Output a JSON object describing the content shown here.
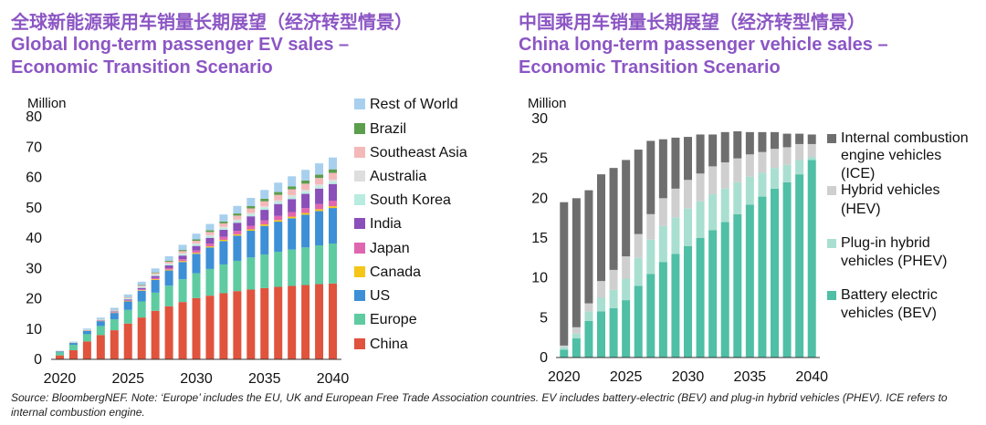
{
  "titles": {
    "left_zh": "全球新能源乘用车销量长期展望（经济转型情景）",
    "left_en_1": "Global long-term passenger EV sales –",
    "left_en_2": "Economic Transition Scenario",
    "right_zh": "中国乘用车销量长期展望（经济转型情景）",
    "right_en_1": "China long-term passenger vehicle sales –",
    "right_en_2": "Economic Transition Scenario"
  },
  "footnote": "Source: BloombergNEF. Note: ‘Europe’ includes the EU, UK and European Free Trade Association countries. EV includes battery-electric (BEV) and plug-in hybrid vehicles (PHEV). ICE refers to internal combustion engine.",
  "chart_data": [
    {
      "type": "bar",
      "stacked": true,
      "title": "Global long-term passenger EV sales – Economic Transition Scenario",
      "ylabel": "Million",
      "ylim": [
        0,
        80
      ],
      "yticks": [
        0,
        10,
        20,
        30,
        40,
        50,
        60,
        70,
        80
      ],
      "x": [
        2020,
        2021,
        2022,
        2023,
        2024,
        2025,
        2026,
        2027,
        2028,
        2029,
        2030,
        2031,
        2032,
        2033,
        2034,
        2035,
        2036,
        2037,
        2038,
        2039,
        2040
      ],
      "xticks": [
        2020,
        2025,
        2030,
        2035,
        2040
      ],
      "series": [
        {
          "name": "China",
          "color": "#e0533d",
          "values": [
            1.3,
            3.0,
            5.9,
            8.0,
            9.6,
            11.8,
            13.8,
            16.0,
            17.5,
            18.9,
            20.2,
            21.0,
            21.8,
            22.5,
            23.0,
            23.5,
            23.9,
            24.2,
            24.5,
            24.8,
            25.0
          ]
        },
        {
          "name": "Europe",
          "color": "#5ecba1",
          "values": [
            1.0,
            1.8,
            2.4,
            3.0,
            3.6,
            4.5,
            5.3,
            6.0,
            6.8,
            7.5,
            8.2,
            8.8,
            9.5,
            10.0,
            10.6,
            11.1,
            11.6,
            12.0,
            12.4,
            12.8,
            13.2
          ]
        },
        {
          "name": "US",
          "color": "#3d8fd6",
          "values": [
            0.3,
            0.6,
            1.1,
            1.6,
            2.1,
            2.8,
            3.5,
            4.2,
            5.0,
            5.7,
            6.4,
            7.1,
            7.7,
            8.3,
            8.8,
            9.4,
            9.9,
            10.3,
            10.8,
            11.3,
            11.7
          ]
        },
        {
          "name": "Canada",
          "color": "#f5c518",
          "values": [
            0.05,
            0.05,
            0.08,
            0.1,
            0.13,
            0.16,
            0.2,
            0.23,
            0.27,
            0.3,
            0.34,
            0.37,
            0.4,
            0.43,
            0.46,
            0.5,
            0.52,
            0.55,
            0.57,
            0.6,
            0.62
          ]
        },
        {
          "name": "Japan",
          "color": "#e066b0",
          "values": [
            0.03,
            0.04,
            0.06,
            0.1,
            0.15,
            0.22,
            0.3,
            0.4,
            0.5,
            0.62,
            0.75,
            0.9,
            1.0,
            1.1,
            1.2,
            1.3,
            1.4,
            1.5,
            1.6,
            1.7,
            1.8
          ]
        },
        {
          "name": "India",
          "color": "#8a4fb8",
          "values": [
            0.01,
            0.02,
            0.05,
            0.1,
            0.2,
            0.3,
            0.45,
            0.65,
            0.9,
            1.2,
            1.5,
            1.9,
            2.3,
            2.7,
            3.1,
            3.5,
            3.9,
            4.3,
            4.7,
            5.1,
            5.5
          ]
        },
        {
          "name": "South Korea",
          "color": "#b8ece0",
          "values": [
            0.05,
            0.08,
            0.12,
            0.17,
            0.22,
            0.28,
            0.33,
            0.38,
            0.43,
            0.47,
            0.5,
            0.53,
            0.56,
            0.59,
            0.62,
            0.64,
            0.66,
            0.68,
            0.7,
            0.72,
            0.74
          ]
        },
        {
          "name": "Australia",
          "color": "#dedede",
          "values": [
            0.01,
            0.02,
            0.03,
            0.05,
            0.08,
            0.12,
            0.16,
            0.2,
            0.25,
            0.3,
            0.35,
            0.4,
            0.44,
            0.48,
            0.52,
            0.56,
            0.6,
            0.63,
            0.66,
            0.69,
            0.72
          ]
        },
        {
          "name": "Southeast Asia",
          "color": "#f4b8b8",
          "values": [
            0.02,
            0.03,
            0.05,
            0.1,
            0.15,
            0.22,
            0.3,
            0.4,
            0.55,
            0.7,
            0.85,
            1.0,
            1.15,
            1.3,
            1.45,
            1.6,
            1.75,
            1.9,
            2.0,
            2.1,
            2.2
          ]
        },
        {
          "name": "Brazil",
          "color": "#5b9e4c",
          "values": [
            0.0,
            0.01,
            0.02,
            0.05,
            0.08,
            0.12,
            0.16,
            0.22,
            0.3,
            0.38,
            0.46,
            0.54,
            0.62,
            0.7,
            0.78,
            0.86,
            0.94,
            1.0,
            1.06,
            1.12,
            1.18
          ]
        },
        {
          "name": "Rest of World",
          "color": "#a8d0ee",
          "values": [
            0.1,
            0.2,
            0.35,
            0.5,
            0.7,
            0.9,
            1.1,
            1.3,
            1.5,
            1.7,
            1.9,
            2.1,
            2.3,
            2.5,
            2.7,
            2.9,
            3.1,
            3.3,
            3.5,
            3.7,
            3.9
          ]
        }
      ]
    },
    {
      "type": "bar",
      "stacked": true,
      "title": "China long-term passenger vehicle sales – Economic Transition Scenario",
      "ylabel": "Million",
      "ylim": [
        0,
        30
      ],
      "yticks": [
        0,
        5,
        10,
        15,
        20,
        25,
        30
      ],
      "x": [
        2020,
        2021,
        2022,
        2023,
        2024,
        2025,
        2026,
        2027,
        2028,
        2029,
        2030,
        2031,
        2032,
        2033,
        2034,
        2035,
        2036,
        2037,
        2038,
        2039,
        2040
      ],
      "xticks": [
        2020,
        2025,
        2030,
        2035,
        2040
      ],
      "series": [
        {
          "name": "Battery electric vehicles (BEV)",
          "color": "#4fbfa5",
          "values": [
            1.0,
            2.4,
            4.6,
            5.8,
            6.2,
            7.2,
            9.0,
            10.5,
            12.0,
            13.0,
            14.0,
            15.0,
            16.0,
            17.0,
            18.0,
            19.2,
            20.2,
            21.2,
            22.0,
            23.0,
            24.8
          ]
        },
        {
          "name": "Plug-in hybrid vehicles (PHEV)",
          "color": "#a9dfd0",
          "values": [
            0.3,
            0.6,
            1.2,
            1.7,
            2.3,
            2.7,
            3.5,
            4.3,
            4.5,
            4.6,
            4.7,
            4.6,
            4.5,
            4.2,
            4.0,
            3.5,
            3.0,
            2.6,
            2.2,
            1.8,
            0.4
          ]
        },
        {
          "name": "Hybrid vehicles (HEV)",
          "color": "#cfcfcf",
          "values": [
            0.2,
            0.8,
            1.0,
            2.1,
            2.5,
            2.8,
            3.0,
            3.2,
            3.5,
            3.6,
            3.6,
            3.5,
            3.5,
            3.3,
            3.0,
            2.8,
            2.6,
            2.4,
            2.2,
            2.0,
            1.6
          ]
        },
        {
          "name": "Internal combustion engine vehicles (ICE)",
          "color": "#6e6e6e",
          "values": [
            18.0,
            16.2,
            14.2,
            13.4,
            12.8,
            12.1,
            10.6,
            9.2,
            7.4,
            6.4,
            5.4,
            4.9,
            4.0,
            3.8,
            3.4,
            2.8,
            2.5,
            2.1,
            1.7,
            1.3,
            1.2
          ]
        }
      ]
    }
  ]
}
